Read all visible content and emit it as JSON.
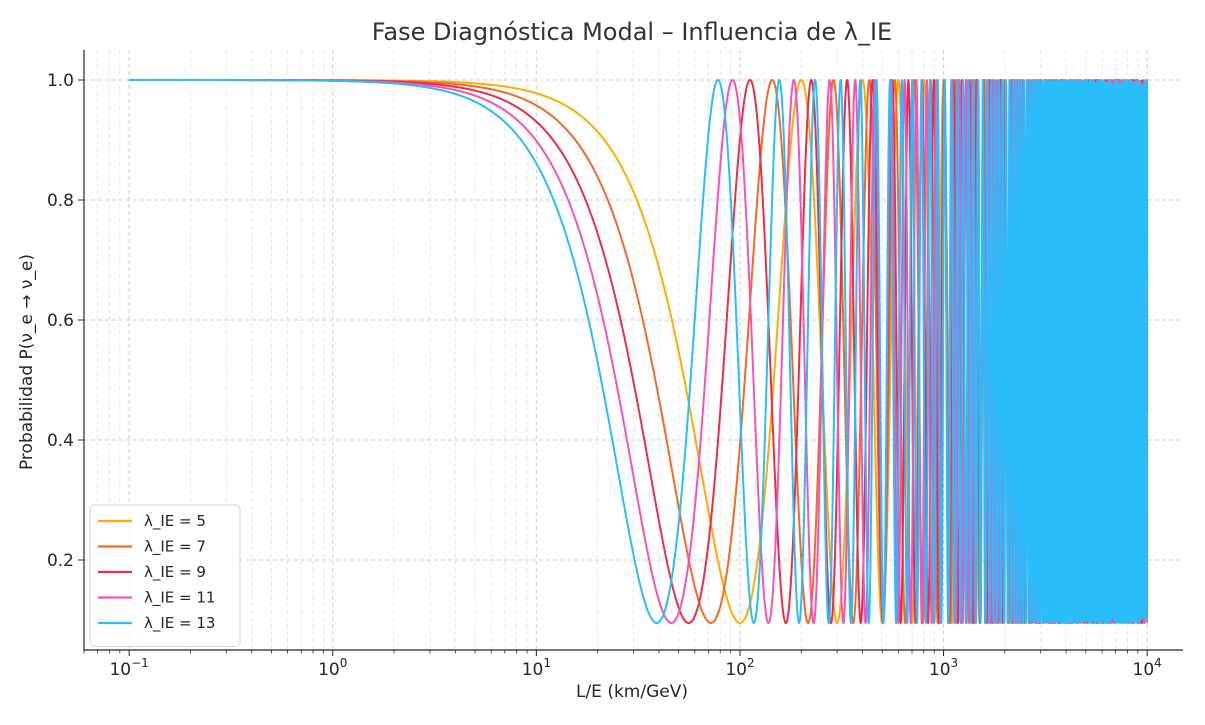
{
  "chart_data": {
    "type": "line",
    "title": "Fase Diagnóstica Modal – Influencia de λ_IE",
    "xlabel": "L/E (km/GeV)",
    "ylabel": "Probabilidad P(ν_e → ν_e)",
    "xscale": "log",
    "xlim": [
      0.06,
      15000
    ],
    "ylim": [
      0.05,
      1.05
    ],
    "x_ticks": [
      0.1,
      1,
      10,
      100,
      1000,
      10000
    ],
    "x_tick_labels": [
      {
        "base": "10",
        "exp": "−1"
      },
      {
        "base": "10",
        "exp": "0"
      },
      {
        "base": "10",
        "exp": "1"
      },
      {
        "base": "10",
        "exp": "2"
      },
      {
        "base": "10",
        "exp": "3"
      },
      {
        "base": "10",
        "exp": "4"
      }
    ],
    "y_ticks": [
      0.2,
      0.4,
      0.6,
      0.8,
      1.0
    ],
    "y_tick_labels": [
      "0.2",
      "0.4",
      "0.6",
      "0.8",
      "1.0"
    ],
    "x_range_data": [
      0.1,
      10000
    ],
    "grid": true,
    "legend_position": "lower-left",
    "min_probability": 0.095,
    "series": [
      {
        "name": "λ_IE = 5",
        "color": "#ffab00",
        "first_minimum_x": 100
      },
      {
        "name": "λ_IE = 7",
        "color": "#f26a24",
        "first_minimum_x": 72
      },
      {
        "name": "λ_IE = 9",
        "color": "#ea2d4c",
        "first_minimum_x": 56
      },
      {
        "name": "λ_IE = 11",
        "color": "#f652b8",
        "first_minimum_x": 46
      },
      {
        "name": "λ_IE = 13",
        "color": "#29bdfa",
        "first_minimum_x": 39
      }
    ]
  }
}
